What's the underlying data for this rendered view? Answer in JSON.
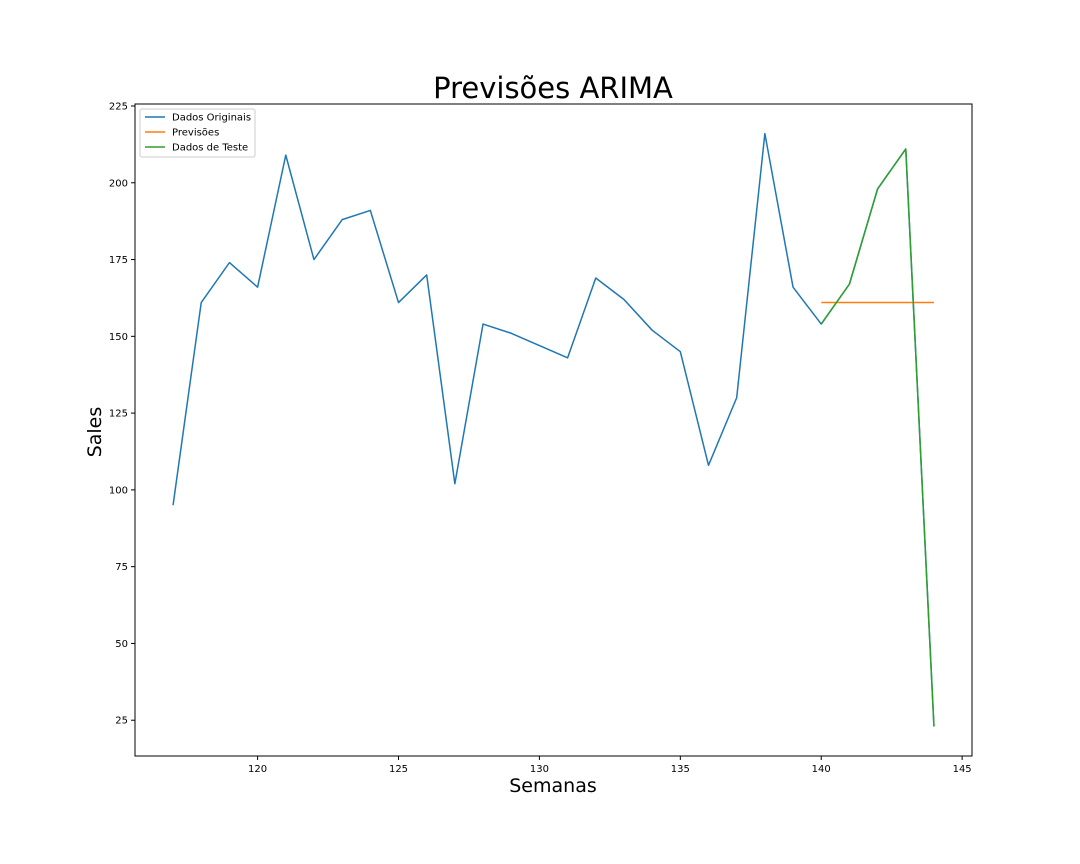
{
  "chart_data": {
    "type": "line",
    "title": "Previsões ARIMA",
    "xlabel": "Semanas",
    "ylabel": "Sales",
    "xlim": [
      115.65,
      145.35
    ],
    "ylim": [
      13.35,
      225.65
    ],
    "xticks": [
      120,
      125,
      130,
      135,
      140,
      145
    ],
    "yticks": [
      25,
      50,
      75,
      100,
      125,
      150,
      175,
      200,
      225
    ],
    "grid": false,
    "legend_position": "top-left",
    "series": [
      {
        "name": "Dados Originais",
        "color": "#1f77b4",
        "x": [
          117,
          118,
          119,
          120,
          121,
          122,
          123,
          124,
          125,
          126,
          127,
          128,
          129,
          130,
          131,
          132,
          133,
          134,
          135,
          136,
          137,
          138,
          139,
          140,
          141,
          142,
          143,
          144
        ],
        "values": [
          95,
          161,
          174,
          166,
          209,
          175,
          188,
          191,
          161,
          170,
          102,
          154,
          151,
          147,
          143,
          169,
          162,
          152,
          145,
          108,
          130,
          216,
          166,
          154,
          167,
          198,
          211,
          23
        ]
      },
      {
        "name": "Previsões",
        "color": "#ff7f0e",
        "x": [
          140,
          141,
          142,
          143,
          144
        ],
        "values": [
          161,
          161,
          161,
          161,
          161
        ]
      },
      {
        "name": "Dados de Teste",
        "color": "#2ca02c",
        "x": [
          140,
          141,
          142,
          143,
          144
        ],
        "values": [
          154,
          167,
          198,
          211,
          23
        ]
      }
    ]
  }
}
